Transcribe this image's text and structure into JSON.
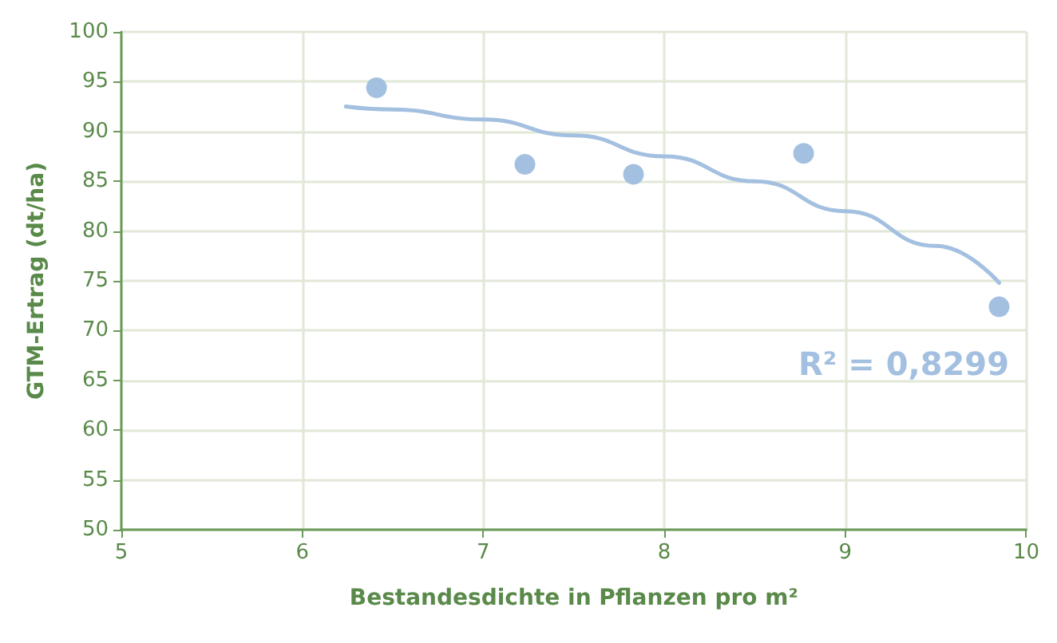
{
  "chart_data": {
    "type": "scatter",
    "xlabel": "Bestandesdichte in Pflanzen pro m²",
    "ylabel": "GTM-Ertrag (dt/ha)",
    "xlim": [
      5,
      10
    ],
    "xticks": [
      5,
      6,
      7,
      8,
      9,
      10
    ],
    "ylim": [
      50,
      100
    ],
    "yticks": [
      50,
      55,
      60,
      65,
      70,
      75,
      80,
      85,
      90,
      95,
      100
    ],
    "grid": true,
    "marker": "circle",
    "series": [
      {
        "color": "#a4c0e0",
        "x": [
          6.41,
          7.23,
          7.83,
          8.77,
          9.85
        ],
        "values": [
          94.4,
          86.7,
          85.7,
          87.8,
          72.4
        ]
      },
      {
        "type": "line",
        "color": "#a4c0e0",
        "marker": "none",
        "line_style": "solid",
        "x": [
          6.24,
          6.5,
          7,
          7.5,
          8,
          8.5,
          9,
          9.5,
          9.85
        ],
        "values": [
          92.5,
          92.2,
          91.2,
          89.6,
          87.5,
          85.0,
          82.0,
          78.5,
          74.8
        ]
      }
    ],
    "annotations": [
      "R² = 0,8299"
    ]
  }
}
